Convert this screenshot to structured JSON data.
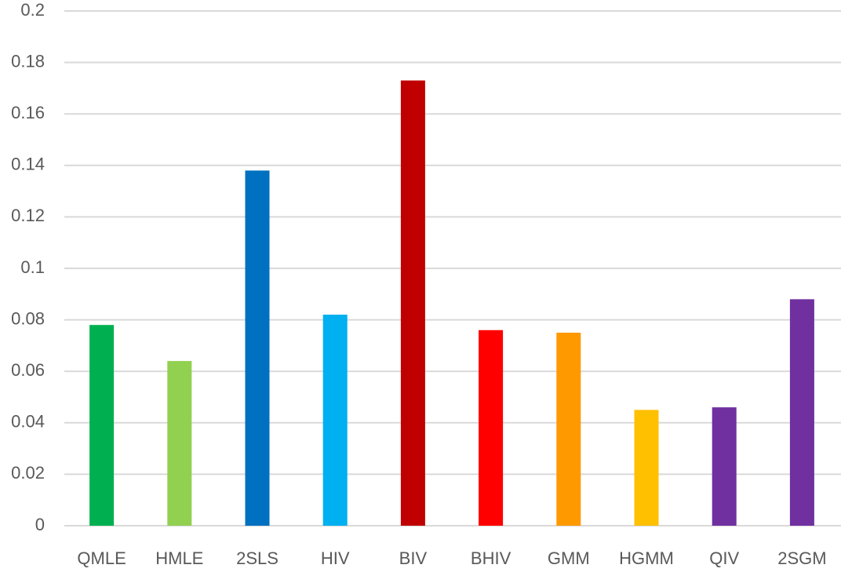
{
  "chart_data": {
    "type": "bar",
    "categories": [
      "QMLE",
      "HMLE",
      "2SLS",
      "HIV",
      "BIV",
      "BHIV",
      "GMM",
      "HGMM",
      "QIV",
      "2SGM"
    ],
    "values": [
      0.078,
      0.064,
      0.138,
      0.082,
      0.173,
      0.076,
      0.075,
      0.045,
      0.046,
      0.088
    ],
    "colors": [
      "#00b050",
      "#92d050",
      "#0070c0",
      "#00b0f0",
      "#c00000",
      "#ff0000",
      "#ff9900",
      "#ffc000",
      "#7030a0",
      "#7030a0"
    ],
    "ylim": [
      0,
      0.2
    ],
    "yticks": [
      0,
      0.02,
      0.04,
      0.06,
      0.08,
      0.1,
      0.12,
      0.14,
      0.16,
      0.18,
      0.2
    ],
    "grid": true
  }
}
